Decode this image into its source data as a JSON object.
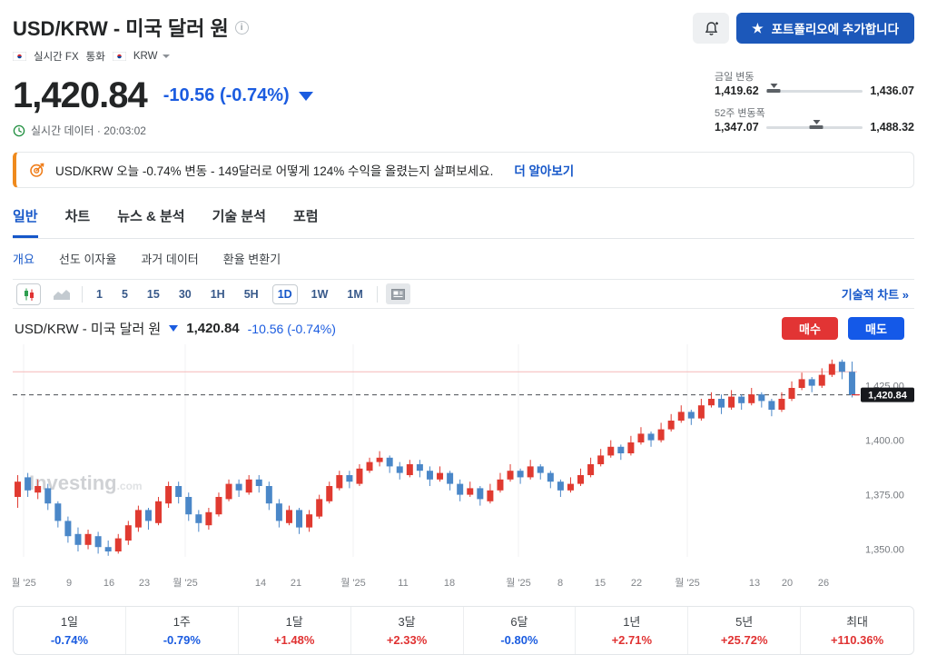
{
  "header": {
    "title": "USD/KRW - 미국 달러 원",
    "breadcrumb": {
      "item1": "실시간 FX",
      "item2": "통화",
      "item3": "KRW"
    },
    "portfolio_button": "포트폴리오에 추가합니다",
    "price": "1,420.84",
    "change": "-10.56 (-0.74%)",
    "realtime": "실시간 데이터 · 20:03:02",
    "ranges": {
      "daily_label": "금일 변동",
      "daily_low": "1,419.62",
      "daily_high": "1,436.07",
      "daily_pos_pct": 8,
      "week52_label": "52주 변동폭",
      "week52_low": "1,347.07",
      "week52_high": "1,488.32",
      "week52_pos_pct": 52
    }
  },
  "banner": {
    "text": "USD/KRW 오늘 -0.74% 변동 - 149달러로 어떻게 124% 수익을 올렸는지 살펴보세요.",
    "link": "더 알아보기"
  },
  "tabs": [
    {
      "label": "일반"
    },
    {
      "label": "차트"
    },
    {
      "label": "뉴스 & 분석"
    },
    {
      "label": "기술 분석"
    },
    {
      "label": "포럼"
    }
  ],
  "subtabs": [
    {
      "label": "개요"
    },
    {
      "label": "선도 이자율"
    },
    {
      "label": "과거 데이터"
    },
    {
      "label": "환율 변환기"
    }
  ],
  "chart": {
    "timeframes": [
      "1",
      "5",
      "15",
      "30",
      "1H",
      "5H",
      "1D",
      "1W",
      "1M"
    ],
    "active_timeframe": "1D",
    "tech_link": "기술적 차트 »",
    "title": "USD/KRW - 미국 달러 원",
    "price": "1,420.84",
    "change": "-10.56 (-0.74%)",
    "buy_button": "매수",
    "sell_button": "매도"
  },
  "chart_data": {
    "type": "candlestick",
    "symbol": "USD/KRW",
    "interval": "1D",
    "last_price": 1420.84,
    "last_label": "1,420.84",
    "change": -10.56,
    "change_pct": -0.74,
    "prev_close": 1431.4,
    "day_range": [
      1419.62,
      1436.07
    ],
    "week52_range": [
      1347.07,
      1488.32
    ],
    "price_max_view": 1444,
    "watermark": "Investing",
    "watermark_suffix": ".com",
    "y_ticks": [
      {
        "label": "1,425.00",
        "price": 1425
      },
      {
        "label": "1,400.00",
        "price": 1400
      },
      {
        "label": "1,375.00",
        "price": 1375
      },
      {
        "label": "1,350.00",
        "price": 1350
      }
    ],
    "x_labels": [
      {
        "t": "월 '25",
        "x": 12
      },
      {
        "t": "9",
        "x": 62
      },
      {
        "t": "16",
        "x": 106
      },
      {
        "t": "23",
        "x": 145
      },
      {
        "t": "월 '25",
        "x": 190
      },
      {
        "t": "14",
        "x": 273
      },
      {
        "t": "21",
        "x": 312
      },
      {
        "t": "월 '25",
        "x": 375
      },
      {
        "t": "11",
        "x": 430
      },
      {
        "t": "18",
        "x": 481
      },
      {
        "t": "월 '25",
        "x": 557
      },
      {
        "t": "8",
        "x": 603
      },
      {
        "t": "15",
        "x": 647
      },
      {
        "t": "22",
        "x": 687
      },
      {
        "t": "월 '25",
        "x": 743
      },
      {
        "t": "13",
        "x": 817
      },
      {
        "t": "20",
        "x": 853
      },
      {
        "t": "26",
        "x": 893
      }
    ],
    "colors": {
      "up": "#e03a30",
      "down": "#4a87c8",
      "prev_close_line": "#f5b8b8",
      "last_line": "#4a4e53",
      "badge_bg": "#17191d"
    },
    "candles": [
      [
        1374,
        1384,
        1369,
        1381
      ],
      [
        1383,
        1385,
        1374,
        1377
      ],
      [
        1376,
        1382,
        1373,
        1379
      ],
      [
        1378,
        1380,
        1368,
        1371
      ],
      [
        1371,
        1372,
        1360,
        1363
      ],
      [
        1363,
        1365,
        1353,
        1356
      ],
      [
        1357,
        1360,
        1349,
        1352
      ],
      [
        1352,
        1359,
        1350,
        1357
      ],
      [
        1356,
        1358,
        1348,
        1351
      ],
      [
        1351,
        1354,
        1347,
        1349
      ],
      [
        1349,
        1357,
        1348,
        1355
      ],
      [
        1354,
        1363,
        1352,
        1361
      ],
      [
        1360,
        1370,
        1358,
        1368
      ],
      [
        1368,
        1369,
        1359,
        1363
      ],
      [
        1362,
        1374,
        1361,
        1372
      ],
      [
        1371,
        1381,
        1369,
        1379
      ],
      [
        1379,
        1381,
        1371,
        1374
      ],
      [
        1374,
        1376,
        1363,
        1366
      ],
      [
        1366,
        1368,
        1358,
        1362
      ],
      [
        1361,
        1369,
        1359,
        1367
      ],
      [
        1366,
        1376,
        1365,
        1374
      ],
      [
        1373,
        1382,
        1372,
        1380
      ],
      [
        1380,
        1382,
        1374,
        1377
      ],
      [
        1376,
        1384,
        1375,
        1382
      ],
      [
        1382,
        1384,
        1376,
        1379
      ],
      [
        1379,
        1381,
        1368,
        1371
      ],
      [
        1371,
        1373,
        1360,
        1363
      ],
      [
        1362,
        1370,
        1361,
        1368
      ],
      [
        1368,
        1369,
        1357,
        1360
      ],
      [
        1360,
        1368,
        1358,
        1366
      ],
      [
        1365,
        1375,
        1364,
        1373
      ],
      [
        1372,
        1381,
        1371,
        1379
      ],
      [
        1378,
        1386,
        1377,
        1384
      ],
      [
        1384,
        1386,
        1378,
        1381
      ],
      [
        1380,
        1389,
        1379,
        1387
      ],
      [
        1386,
        1392,
        1385,
        1390
      ],
      [
        1390,
        1395,
        1388,
        1392
      ],
      [
        1392,
        1393,
        1385,
        1388
      ],
      [
        1388,
        1390,
        1382,
        1385
      ],
      [
        1384,
        1391,
        1383,
        1389
      ],
      [
        1389,
        1391,
        1383,
        1386
      ],
      [
        1386,
        1388,
        1379,
        1382
      ],
      [
        1382,
        1388,
        1381,
        1385
      ],
      [
        1385,
        1386,
        1377,
        1380
      ],
      [
        1380,
        1382,
        1372,
        1375
      ],
      [
        1375,
        1381,
        1374,
        1378
      ],
      [
        1378,
        1379,
        1370,
        1373
      ],
      [
        1372,
        1380,
        1371,
        1377
      ],
      [
        1377,
        1385,
        1376,
        1382
      ],
      [
        1382,
        1389,
        1381,
        1386
      ],
      [
        1386,
        1387,
        1380,
        1383
      ],
      [
        1383,
        1391,
        1382,
        1388
      ],
      [
        1388,
        1389,
        1382,
        1385
      ],
      [
        1385,
        1386,
        1378,
        1381
      ],
      [
        1381,
        1382,
        1374,
        1377
      ],
      [
        1377,
        1383,
        1376,
        1380
      ],
      [
        1380,
        1387,
        1379,
        1384
      ],
      [
        1384,
        1392,
        1383,
        1389
      ],
      [
        1389,
        1396,
        1388,
        1393
      ],
      [
        1393,
        1400,
        1392,
        1397
      ],
      [
        1397,
        1398,
        1391,
        1394
      ],
      [
        1394,
        1402,
        1393,
        1399
      ],
      [
        1399,
        1406,
        1398,
        1403
      ],
      [
        1403,
        1404,
        1397,
        1400
      ],
      [
        1400,
        1408,
        1399,
        1405
      ],
      [
        1405,
        1412,
        1404,
        1409
      ],
      [
        1409,
        1416,
        1408,
        1413
      ],
      [
        1413,
        1414,
        1407,
        1410
      ],
      [
        1410,
        1419,
        1409,
        1416
      ],
      [
        1416,
        1422,
        1415,
        1419
      ],
      [
        1419,
        1421,
        1412,
        1415
      ],
      [
        1415,
        1423,
        1414,
        1420
      ],
      [
        1420,
        1421,
        1414,
        1417
      ],
      [
        1417,
        1424,
        1416,
        1421
      ],
      [
        1421,
        1422,
        1415,
        1418
      ],
      [
        1418,
        1419,
        1411,
        1414
      ],
      [
        1414,
        1422,
        1413,
        1419
      ],
      [
        1419,
        1427,
        1418,
        1424
      ],
      [
        1424,
        1431,
        1423,
        1428
      ],
      [
        1428,
        1429,
        1422,
        1425
      ],
      [
        1425,
        1433,
        1424,
        1430
      ],
      [
        1430,
        1437,
        1429,
        1435
      ],
      [
        1436,
        1437,
        1428,
        1431.4
      ],
      [
        1431.4,
        1436.07,
        1419.62,
        1420.84
      ]
    ]
  },
  "performance": {
    "items": [
      {
        "label": "1일",
        "value": "-0.74%",
        "direction": "down"
      },
      {
        "label": "1주",
        "value": "-0.79%",
        "direction": "down"
      },
      {
        "label": "1달",
        "value": "+1.48%",
        "direction": "up"
      },
      {
        "label": "3달",
        "value": "+2.33%",
        "direction": "up"
      },
      {
        "label": "6달",
        "value": "-0.80%",
        "direction": "down"
      },
      {
        "label": "1년",
        "value": "+2.71%",
        "direction": "up"
      },
      {
        "label": "5년",
        "value": "+25.72%",
        "direction": "up"
      },
      {
        "label": "최대",
        "value": "+110.36%",
        "direction": "up"
      }
    ]
  }
}
